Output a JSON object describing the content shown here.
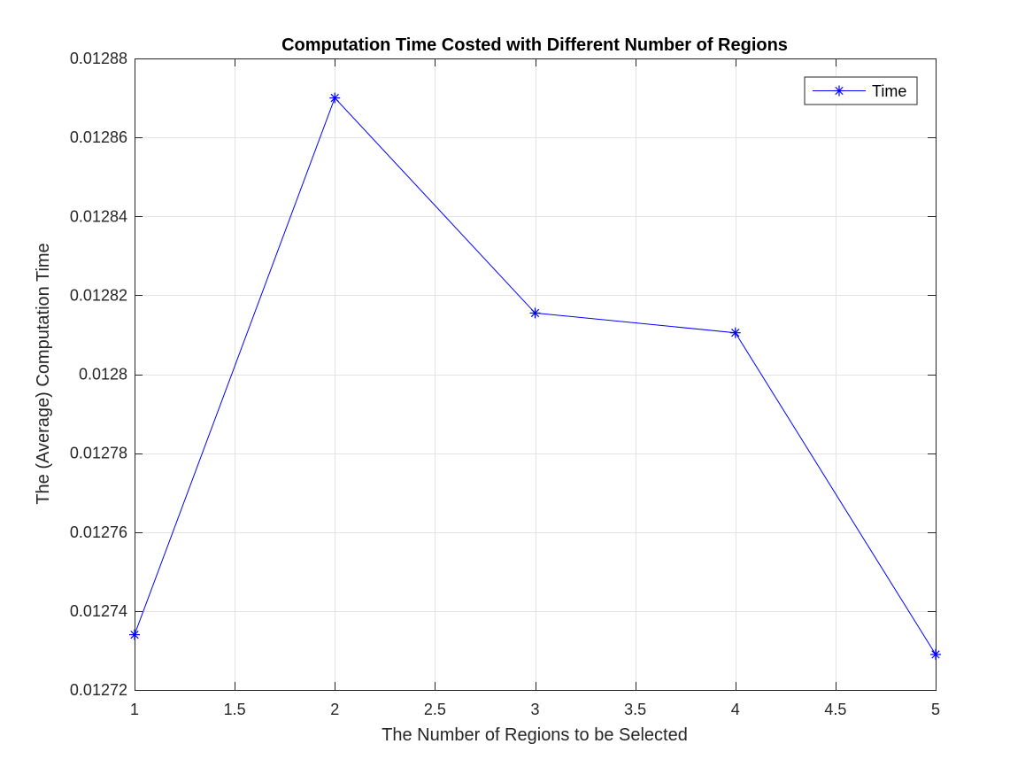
{
  "chart_data": {
    "type": "line",
    "title": "Computation Time Costed with Different Number of Regions",
    "xlabel": "The Number of Regions to be Selected",
    "ylabel": "The (Average) Computation Time",
    "xlim": [
      1,
      5
    ],
    "ylim": [
      0.01272,
      0.01288
    ],
    "xticks": [
      1,
      1.5,
      2,
      2.5,
      3,
      3.5,
      4,
      4.5,
      5
    ],
    "xtick_labels": [
      "1",
      "1.5",
      "2",
      "2.5",
      "3",
      "3.5",
      "4",
      "4.5",
      "5"
    ],
    "yticks": [
      0.01272,
      0.01274,
      0.01276,
      0.01278,
      0.0128,
      0.01282,
      0.01284,
      0.01286,
      0.01288
    ],
    "ytick_labels": [
      "0.01272",
      "0.01274",
      "0.01276",
      "0.01278",
      "0.0128",
      "0.01282",
      "0.01284",
      "0.01286",
      "0.01288"
    ],
    "grid": true,
    "legend_position": "top-right",
    "series": [
      {
        "name": "Time",
        "color": "#0000ff",
        "marker": "asterisk",
        "x": [
          1,
          2,
          3,
          4,
          5
        ],
        "y": [
          0.012734,
          0.01287,
          0.0128155,
          0.0128105,
          0.012729
        ]
      }
    ]
  }
}
